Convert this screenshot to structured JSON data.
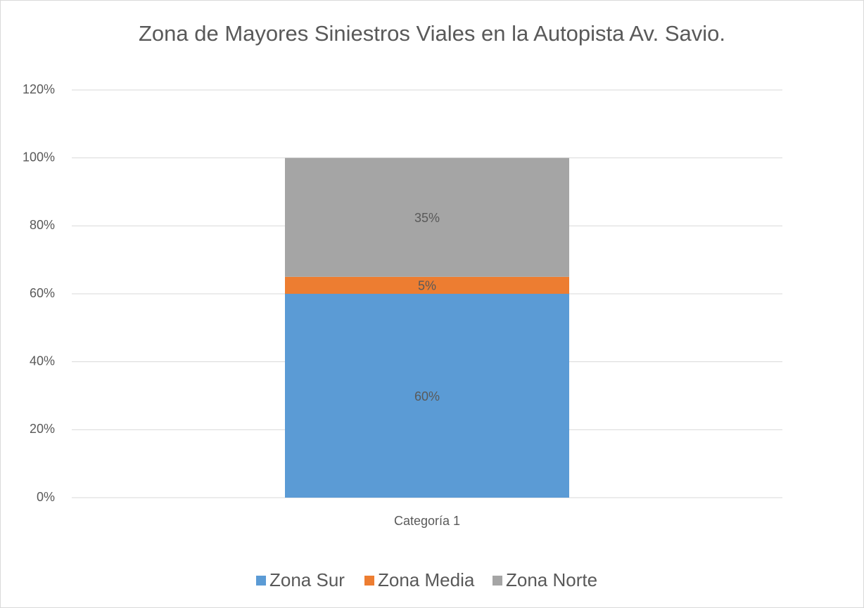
{
  "chart_data": {
    "type": "bar",
    "stacked": true,
    "title": "Zona de Mayores Siniestros Viales en la Autopista Av. Savio.",
    "categories": [
      "Categoría 1"
    ],
    "series": [
      {
        "name": "Zona Sur",
        "color": "#5b9bd5",
        "values": [
          60
        ],
        "value_labels": [
          "60%"
        ]
      },
      {
        "name": "Zona Media",
        "color": "#ed7d31",
        "values": [
          5
        ],
        "value_labels": [
          "5%"
        ]
      },
      {
        "name": "Zona Norte",
        "color": "#a5a5a5",
        "values": [
          35
        ],
        "value_labels": [
          "35%"
        ]
      }
    ],
    "ylim": [
      0,
      120
    ],
    "yticks": [
      {
        "value": 0,
        "label": "0%"
      },
      {
        "value": 20,
        "label": "20%"
      },
      {
        "value": 40,
        "label": "40%"
      },
      {
        "value": 60,
        "label": "60%"
      },
      {
        "value": 80,
        "label": "80%"
      },
      {
        "value": 100,
        "label": "100%"
      },
      {
        "value": 120,
        "label": "120%"
      }
    ],
    "grid": true,
    "legend": "bottom"
  }
}
